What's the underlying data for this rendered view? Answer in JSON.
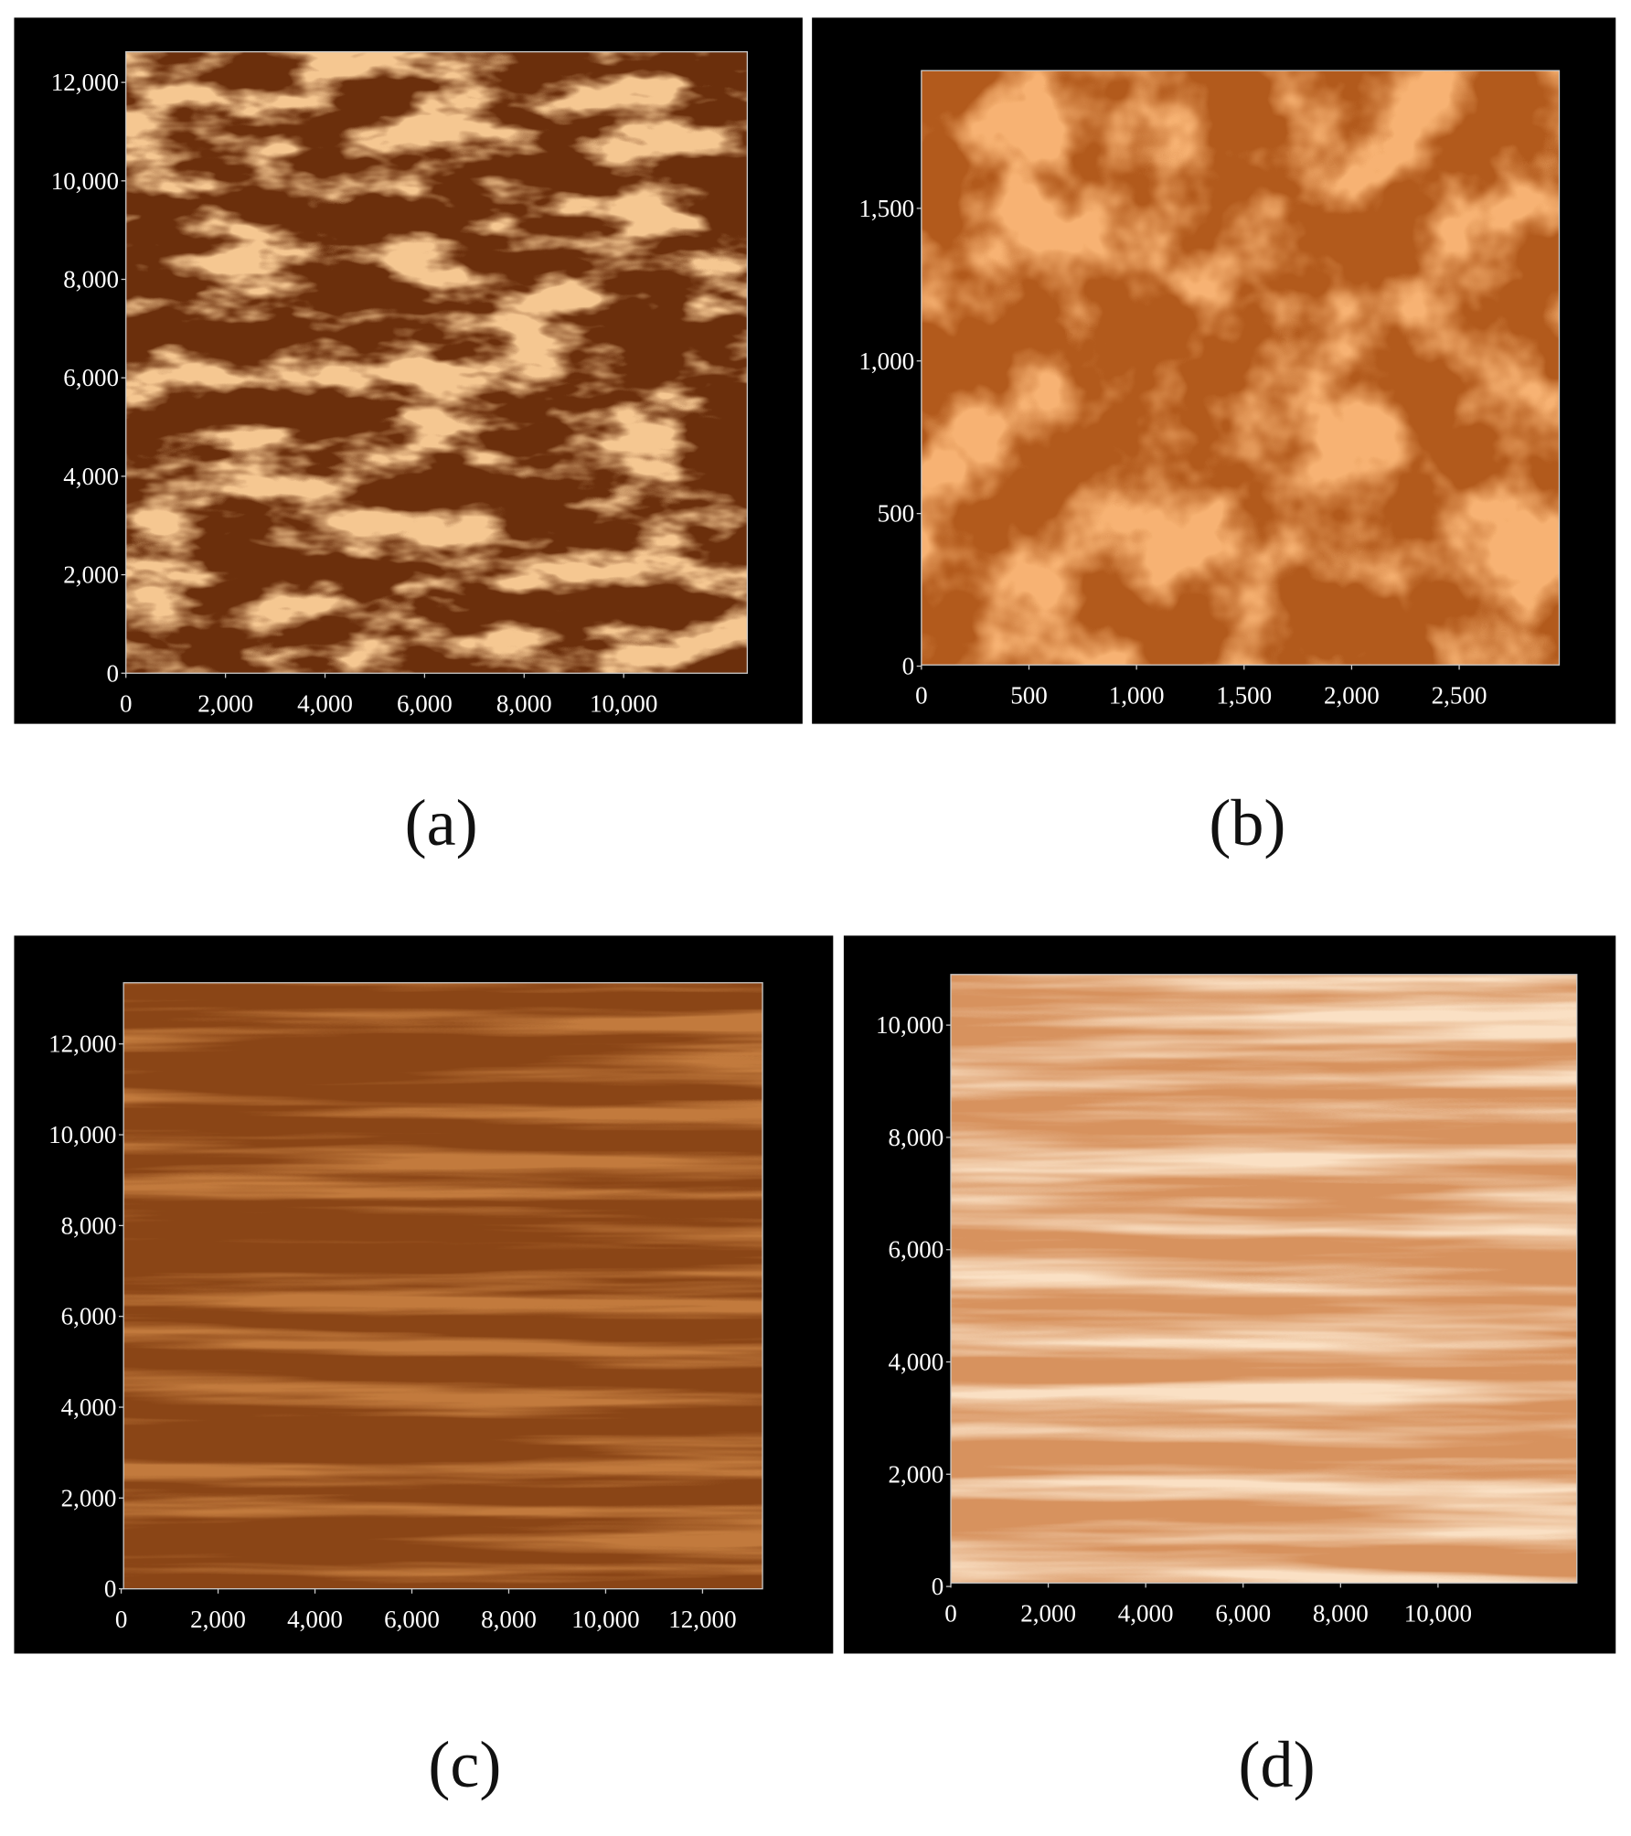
{
  "panels": [
    {
      "label": "(a)",
      "xticks": [
        0,
        {
          "value": 2000,
          "label": "2,000"
        },
        {
          "value": 4000,
          "label": "4,000"
        },
        {
          "value": 6000,
          "label": "6,000"
        },
        {
          "value": 8000,
          "label": "8,000"
        },
        {
          "value": 10000,
          "label": "10,000"
        }
      ],
      "yticks": [
        0,
        {
          "value": 2000,
          "label": "2,000"
        },
        {
          "value": 4000,
          "label": "4,000"
        },
        {
          "value": 6000,
          "label": "6,000"
        },
        {
          "value": 8000,
          "label": "8,000"
        },
        {
          "value": 10000,
          "label": "10,000"
        },
        {
          "value": 12000,
          "label": "12,000"
        }
      ]
    },
    {
      "label": "(b)",
      "xticks": [
        0,
        500,
        {
          "value": 1000,
          "label": "1,000"
        },
        {
          "value": 1500,
          "label": "1,500"
        },
        {
          "value": 2000,
          "label": "2,000"
        },
        {
          "value": 2500,
          "label": "2,500"
        }
      ],
      "yticks": [
        0,
        500,
        {
          "value": 1000,
          "label": "1,000"
        },
        {
          "value": 1500,
          "label": "1,500"
        }
      ]
    },
    {
      "label": "(c)",
      "xticks": [
        0,
        {
          "value": 2000,
          "label": "2,000"
        },
        {
          "value": 4000,
          "label": "4,000"
        },
        {
          "value": 6000,
          "label": "6,000"
        },
        {
          "value": 8000,
          "label": "8,000"
        },
        {
          "value": 10000,
          "label": "10,000"
        },
        {
          "value": 12000,
          "label": "12,000"
        }
      ],
      "yticks": [
        0,
        {
          "value": 2000,
          "label": "2,000"
        },
        {
          "value": 4000,
          "label": "4,000"
        },
        {
          "value": 6000,
          "label": "6,000"
        },
        {
          "value": 8000,
          "label": "8,000"
        },
        {
          "value": 10000,
          "label": "10,000"
        },
        {
          "value": 12000,
          "label": "12,000"
        }
      ]
    },
    {
      "label": "(d)",
      "xticks": [
        0,
        {
          "value": 2000,
          "label": "2,000"
        },
        {
          "value": 4000,
          "label": "4,000"
        },
        {
          "value": 6000,
          "label": "6,000"
        },
        {
          "value": 8000,
          "label": "8,000"
        },
        {
          "value": 10000,
          "label": "10,000"
        }
      ],
      "yticks": [
        0,
        {
          "value": 2000,
          "label": "2,000"
        },
        {
          "value": 4000,
          "label": "4,000"
        },
        {
          "value": 6000,
          "label": "6,000"
        },
        {
          "value": 8000,
          "label": "8,000"
        },
        {
          "value": 10000,
          "label": "10,000"
        }
      ]
    }
  ]
}
